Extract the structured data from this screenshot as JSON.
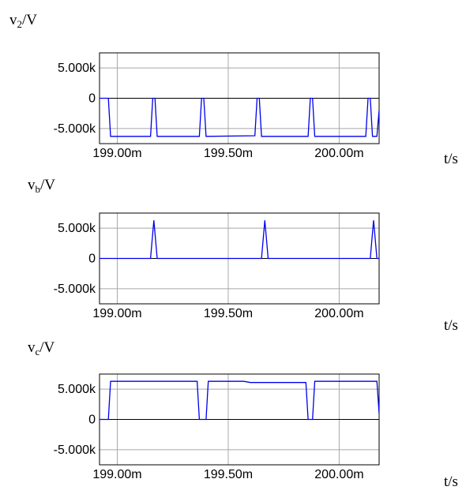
{
  "chart_data": [
    {
      "type": "line",
      "ylabel": {
        "main": "v",
        "sub": "2",
        "unit": "/V"
      },
      "xlabel": "t/s",
      "xlim": [
        198.92,
        200.18
      ],
      "ylim": [
        -7.5,
        7.5
      ],
      "x_ticks": [
        199.0,
        199.5,
        200.0
      ],
      "x_tick_labels": [
        "199.00m",
        "199.50m",
        "200.00m"
      ],
      "y_ticks": [
        5,
        0,
        -5
      ],
      "y_tick_labels": [
        "5.000k",
        "0",
        "-5.000k"
      ],
      "grid": true,
      "color": "#0000ee",
      "points": [
        [
          198.92,
          0
        ],
        [
          198.96,
          0
        ],
        [
          198.97,
          -6.3
        ],
        [
          199.15,
          -6.3
        ],
        [
          199.16,
          0
        ],
        [
          199.17,
          0
        ],
        [
          199.18,
          -6.3
        ],
        [
          199.37,
          -6.3
        ],
        [
          199.38,
          0
        ],
        [
          199.39,
          0
        ],
        [
          199.4,
          -6.3
        ],
        [
          199.62,
          -6.2
        ],
        [
          199.63,
          0
        ],
        [
          199.64,
          0
        ],
        [
          199.65,
          -6.3
        ],
        [
          199.86,
          -6.3
        ],
        [
          199.87,
          0
        ],
        [
          199.88,
          0
        ],
        [
          199.89,
          -6.3
        ],
        [
          200.12,
          -6.3
        ],
        [
          200.13,
          0
        ],
        [
          200.14,
          0
        ],
        [
          200.15,
          -6.3
        ],
        [
          200.17,
          -6.3
        ],
        [
          200.18,
          -2.0
        ]
      ]
    },
    {
      "type": "line",
      "ylabel": {
        "main": "v",
        "sub": "b",
        "unit": "/V"
      },
      "xlabel": "t/s",
      "xlim": [
        198.92,
        200.18
      ],
      "ylim": [
        -7.5,
        7.5
      ],
      "x_ticks": [
        199.0,
        199.5,
        200.0
      ],
      "x_tick_labels": [
        "199.00m",
        "199.50m",
        "200.00m"
      ],
      "y_ticks": [
        5,
        0,
        -5
      ],
      "y_tick_labels": [
        "5.000k",
        "0",
        "-5.000k"
      ],
      "grid": true,
      "color": "#0000ee",
      "points": [
        [
          198.92,
          0
        ],
        [
          199.15,
          0
        ],
        [
          199.165,
          6.3
        ],
        [
          199.18,
          0
        ],
        [
          199.65,
          0
        ],
        [
          199.665,
          6.3
        ],
        [
          199.68,
          0
        ],
        [
          200.14,
          0
        ],
        [
          200.155,
          6.3
        ],
        [
          200.17,
          0
        ],
        [
          200.18,
          0
        ]
      ]
    },
    {
      "type": "line",
      "ylabel": {
        "main": "v",
        "sub": "c",
        "unit": "/V"
      },
      "xlabel": "t/s",
      "xlim": [
        198.92,
        200.18
      ],
      "ylim": [
        -7.5,
        7.5
      ],
      "x_ticks": [
        199.0,
        199.5,
        200.0
      ],
      "x_tick_labels": [
        "199.00m",
        "199.50m",
        "200.00m"
      ],
      "y_ticks": [
        5,
        0,
        -5
      ],
      "y_tick_labels": [
        "5.000k",
        "0",
        "-5.000k"
      ],
      "grid": true,
      "color": "#0000ee",
      "points": [
        [
          198.92,
          0
        ],
        [
          198.96,
          0
        ],
        [
          198.97,
          6.3
        ],
        [
          199.36,
          6.3
        ],
        [
          199.37,
          0
        ],
        [
          199.4,
          0
        ],
        [
          199.41,
          6.3
        ],
        [
          199.57,
          6.3
        ],
        [
          199.6,
          6.1
        ],
        [
          199.85,
          6.1
        ],
        [
          199.86,
          0
        ],
        [
          199.88,
          0
        ],
        [
          199.89,
          6.3
        ],
        [
          200.17,
          6.3
        ],
        [
          200.18,
          1.0
        ]
      ]
    }
  ]
}
